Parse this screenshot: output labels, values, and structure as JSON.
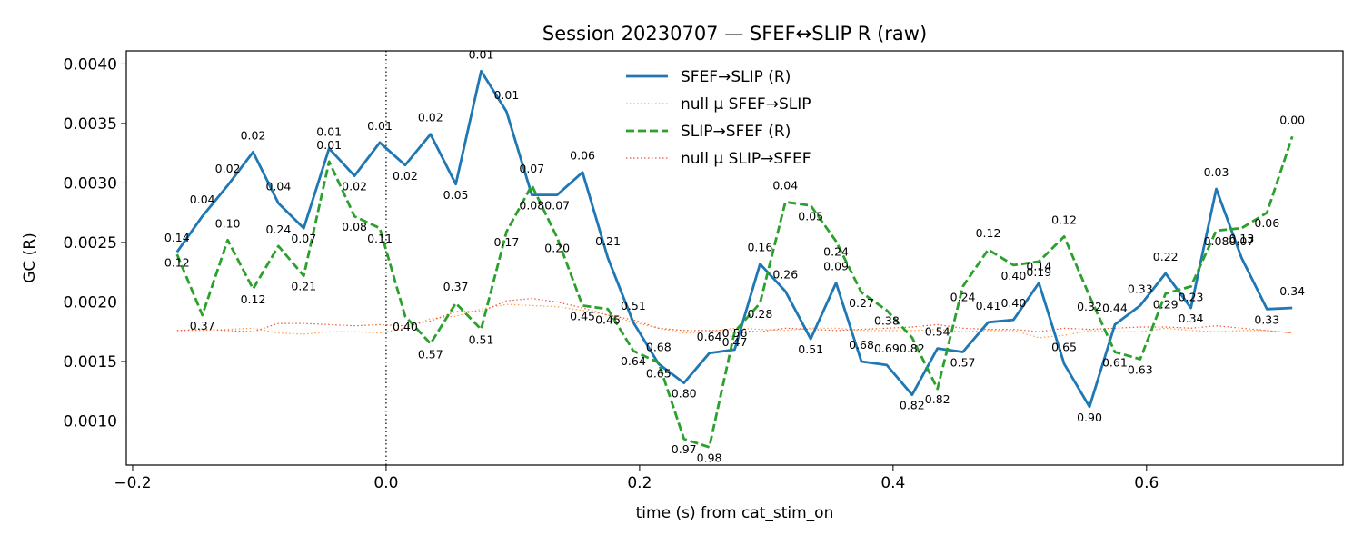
{
  "chart_data": {
    "type": "line",
    "title": "Session 20230707 — SFEF↔SLIP R (raw)",
    "xlabel": "time (s) from cat_stim_on",
    "ylabel": "GC (R)",
    "xlim": [
      -0.205,
      0.755
    ],
    "ylim": [
      0.00063,
      0.00411
    ],
    "xticks": [
      -0.2,
      0.0,
      0.2,
      0.4,
      0.6
    ],
    "xtick_labels": [
      "−0.2",
      "0.0",
      "0.2",
      "0.4",
      "0.6"
    ],
    "yticks": [
      0.001,
      0.0015,
      0.002,
      0.0025,
      0.003,
      0.0035,
      0.004
    ],
    "ytick_labels": [
      "0.0010",
      "0.0015",
      "0.0020",
      "0.0025",
      "0.0030",
      "0.0035",
      "0.0040"
    ],
    "vline": 0.0,
    "legend_position": "top-center",
    "grid": false,
    "x": [
      -0.165,
      -0.145,
      -0.125,
      -0.105,
      -0.085,
      -0.065,
      -0.045,
      -0.025,
      -0.005,
      0.015,
      0.035,
      0.055,
      0.075,
      0.095,
      0.115,
      0.135,
      0.155,
      0.175,
      0.195,
      0.215,
      0.235,
      0.255,
      0.275,
      0.295,
      0.315,
      0.335,
      0.355,
      0.375,
      0.395,
      0.415,
      0.435,
      0.455,
      0.475,
      0.495,
      0.515,
      0.535,
      0.555,
      0.575,
      0.595,
      0.615,
      0.635,
      0.655,
      0.675,
      0.695,
      0.715
    ],
    "series": [
      {
        "name": "SFEF→SLIP (R)",
        "color": "#1f77b4",
        "style": "solid",
        "values": [
          0.00242,
          0.00272,
          0.00298,
          0.00326,
          0.00283,
          0.00262,
          0.00329,
          0.00306,
          0.00334,
          0.00315,
          0.00341,
          0.00299,
          0.00394,
          0.0036,
          0.0029,
          0.0029,
          0.00309,
          0.00237,
          0.00183,
          0.00148,
          0.00132,
          0.00157,
          0.0016,
          0.00232,
          0.00209,
          0.00169,
          0.00216,
          0.0015,
          0.00147,
          0.00122,
          0.00161,
          0.00158,
          0.00183,
          0.00185,
          0.00216,
          0.00148,
          0.00112,
          0.00181,
          0.00197,
          0.00224,
          0.00195,
          0.00295,
          0.00237,
          0.00194,
          0.00195
        ],
        "pvalue_labels": [
          "0.12",
          "0.04",
          "0.02",
          "0.02",
          "0.04",
          "0.07",
          "0.01",
          "0.02",
          "0.01",
          "0.02",
          "0.02",
          "0.05",
          "0.01",
          "0.01",
          "0.08",
          "0.07",
          "0.06",
          "0.21",
          "0.51",
          "0.68",
          "0.80",
          "0.64",
          "0.56",
          "0.16",
          "0.26",
          "0.51",
          "0.09",
          "0.68",
          "0.69",
          "0.82",
          "0.54",
          "0.57",
          "0.41",
          "0.40",
          "0.14",
          "0.65",
          "0.90",
          "0.44",
          "0.33",
          "0.22",
          "0.34",
          "0.03",
          "0.07",
          "0.33",
          "0.34"
        ]
      },
      {
        "name": "null μ SFEF→SLIP",
        "color": "#ff9e4a",
        "style": "dotted",
        "values": [
          0.00176,
          0.00176,
          0.00177,
          0.00178,
          0.00174,
          0.00173,
          0.00175,
          0.00175,
          0.00174,
          0.00178,
          0.00186,
          0.00188,
          0.00194,
          0.00198,
          0.00197,
          0.00196,
          0.00193,
          0.00189,
          0.00183,
          0.00178,
          0.00174,
          0.00175,
          0.00178,
          0.00177,
          0.00176,
          0.00178,
          0.00178,
          0.00176,
          0.00176,
          0.00176,
          0.00177,
          0.00175,
          0.00176,
          0.00176,
          0.0017,
          0.00172,
          0.00176,
          0.00175,
          0.00175,
          0.00178,
          0.00176,
          0.00175,
          0.00176,
          0.00176,
          0.00174
        ]
      },
      {
        "name": "SLIP→SFEF (R)",
        "color": "#2ca02c",
        "style": "dashed",
        "values": [
          0.0024,
          0.00189,
          0.00252,
          0.00211,
          0.00247,
          0.00222,
          0.00318,
          0.00272,
          0.00262,
          0.00188,
          0.00165,
          0.00199,
          0.00177,
          0.00259,
          0.00298,
          0.00254,
          0.00197,
          0.00194,
          0.00159,
          0.00149,
          0.00085,
          0.00078,
          0.00175,
          0.00199,
          0.00284,
          0.00281,
          0.00251,
          0.00208,
          0.00193,
          0.0017,
          0.00127,
          0.00213,
          0.00244,
          0.00231,
          0.00234,
          0.00255,
          0.00205,
          0.00158,
          0.00152,
          0.00207,
          0.00213,
          0.0026,
          0.00262,
          0.00275,
          0.00339
        ],
        "pvalue_labels": [
          "0.14",
          "0.37",
          "0.10",
          "0.12",
          "0.24",
          "0.21",
          "0.01",
          "0.08",
          "0.11",
          "0.40",
          "0.57",
          "0.37",
          "0.51",
          "0.17",
          "0.07",
          "0.20",
          "0.45",
          "0.45",
          "0.64",
          "0.65",
          "0.97",
          "0.98",
          "0.47",
          "0.28",
          "0.04",
          "0.05",
          "0.24",
          "0.27",
          "0.38",
          "0.82",
          "0.82",
          "0.24",
          "0.12",
          "0.40",
          "0.19",
          "0.12",
          "0.32",
          "0.61",
          "0.63",
          "0.29",
          "0.23",
          "0.08",
          "0.13",
          "0.06",
          "0.00"
        ]
      },
      {
        "name": "null μ SLIP→SFEF",
        "color": "#e8583a",
        "style": "dotted",
        "values": [
          0.00176,
          0.00177,
          0.00176,
          0.00175,
          0.00182,
          0.00182,
          0.00181,
          0.0018,
          0.00181,
          0.0018,
          0.00184,
          0.00192,
          0.00192,
          0.00201,
          0.00203,
          0.002,
          0.00195,
          0.00189,
          0.00185,
          0.00178,
          0.00176,
          0.00176,
          0.00176,
          0.00175,
          0.00178,
          0.00177,
          0.00176,
          0.00177,
          0.00178,
          0.00179,
          0.00181,
          0.00178,
          0.00177,
          0.00177,
          0.00175,
          0.00178,
          0.00177,
          0.00178,
          0.00179,
          0.00179,
          0.00178,
          0.0018,
          0.00178,
          0.00176,
          0.00174
        ]
      }
    ]
  }
}
